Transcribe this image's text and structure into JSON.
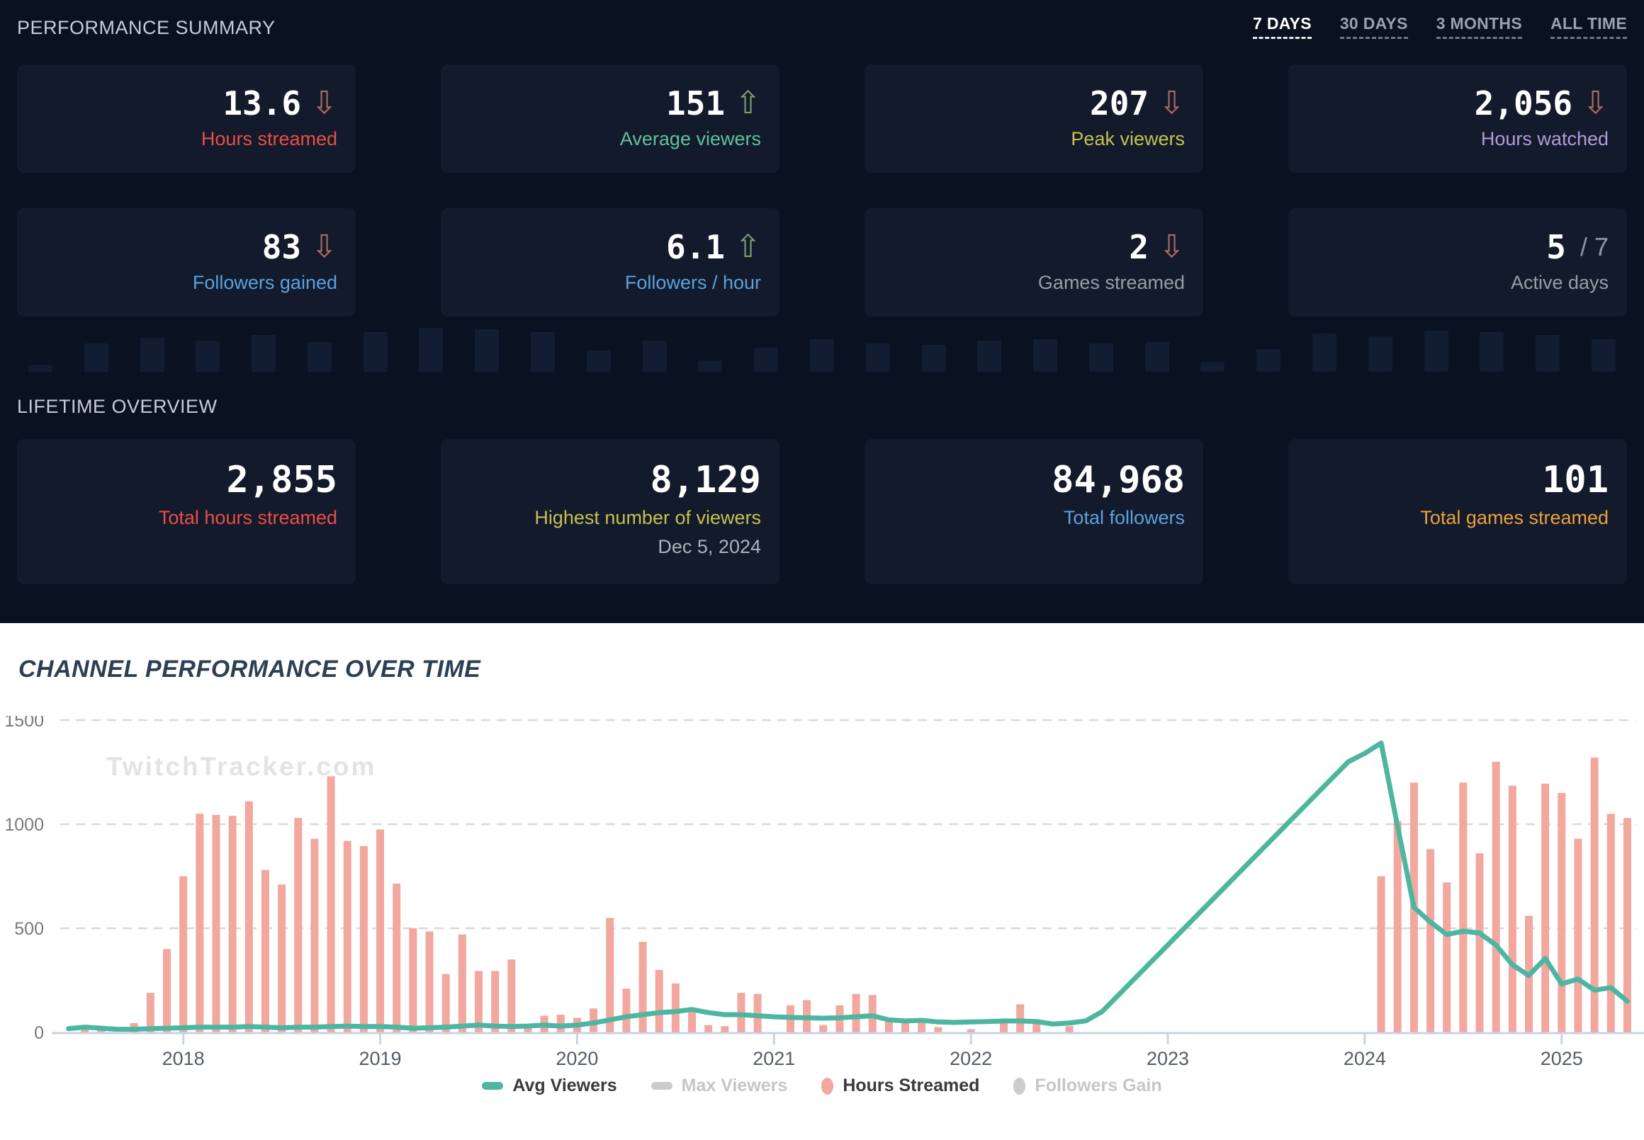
{
  "icons": {
    "trend_up": "⇧",
    "trend_down": "⇩"
  },
  "summary": {
    "title": "PERFORMANCE SUMMARY",
    "tabs": [
      {
        "label": "7 DAYS",
        "active": true
      },
      {
        "label": "30 DAYS",
        "active": false
      },
      {
        "label": "3 MONTHS",
        "active": false
      },
      {
        "label": "ALL TIME",
        "active": false
      }
    ],
    "cards": [
      {
        "value": "13.6",
        "delta": "down",
        "label": "Hours streamed"
      },
      {
        "value": "151",
        "delta": "up",
        "label": "Average viewers"
      },
      {
        "value": "207",
        "delta": "down",
        "label": "Peak viewers"
      },
      {
        "value": "2,056",
        "delta": "down",
        "label": "Hours watched"
      },
      {
        "value": "83",
        "delta": "down",
        "label": "Followers gained"
      },
      {
        "value": "6.1",
        "delta": "up",
        "label": "Followers / hour"
      },
      {
        "value": "2",
        "delta": "down",
        "label": "Games streamed"
      },
      {
        "value": "5",
        "suffix": "/ 7",
        "delta": "none",
        "label": "Active days"
      }
    ],
    "sparkline_heights": [
      10,
      40,
      48,
      44,
      52,
      42,
      56,
      62,
      60,
      56,
      30,
      44,
      16,
      34,
      46,
      40,
      38,
      44,
      46,
      40,
      42,
      14,
      32,
      54,
      50,
      58,
      56,
      52,
      46
    ]
  },
  "lifetime": {
    "title": "LIFETIME OVERVIEW",
    "cards": [
      {
        "value": "2,855",
        "label": "Total hours streamed"
      },
      {
        "value": "8,129",
        "label": "Highest number of viewers",
        "date": "Dec 5, 2024"
      },
      {
        "value": "84,968",
        "label": "Total followers"
      },
      {
        "value": "101",
        "label": "Total games streamed"
      }
    ]
  },
  "chart": {
    "title": "CHANNEL PERFORMANCE OVER TIME",
    "watermark": "TwitchTracker.com",
    "legend": [
      {
        "label": "Avg Viewers",
        "color": "#4db6a0",
        "shape": "dash",
        "enabled": true
      },
      {
        "label": "Max Viewers",
        "color": "#cccccc",
        "shape": "dash",
        "enabled": false
      },
      {
        "label": "Hours Streamed",
        "color": "#f2a79f",
        "shape": "circle",
        "enabled": true
      },
      {
        "label": "Followers Gain",
        "color": "#cccccc",
        "shape": "circle",
        "enabled": false
      }
    ]
  },
  "chart_data": {
    "type": "combo",
    "title": "CHANNEL PERFORMANCE OVER TIME",
    "start_month": "2017-06",
    "ylim": [
      0,
      1500
    ],
    "yticks": [
      0,
      500,
      1000,
      1500
    ],
    "grid": "dashed-horizontal",
    "legend_position": "bottom-center",
    "year_labels": [
      "2018",
      "2019",
      "2020",
      "2021",
      "2022",
      "2023",
      "2024",
      "2025"
    ],
    "series": [
      {
        "name": "Hours Streamed",
        "type": "bar",
        "color": "#f2a79f",
        "values": [
          0,
          15,
          12,
          0,
          45,
          190,
          400,
          750,
          1050,
          1045,
          1040,
          1110,
          780,
          710,
          1030,
          930,
          1230,
          920,
          895,
          975,
          715,
          500,
          485,
          280,
          470,
          295,
          295,
          350,
          25,
          80,
          85,
          70,
          115,
          550,
          210,
          435,
          300,
          235,
          100,
          35,
          30,
          190,
          185,
          0,
          130,
          155,
          35,
          130,
          185,
          180,
          60,
          60,
          60,
          25,
          0,
          15,
          0,
          60,
          135,
          60,
          0,
          30,
          0,
          0,
          0,
          0,
          0,
          0,
          0,
          0,
          0,
          0,
          0,
          0,
          0,
          0,
          0,
          0,
          0,
          0,
          750,
          1015,
          1200,
          880,
          720,
          1200,
          860,
          1300,
          1185,
          560,
          1195,
          1150,
          930,
          1320,
          1050,
          1030
        ]
      },
      {
        "name": "Avg Viewers",
        "type": "line",
        "color": "#4db6a0",
        "values": [
          18,
          25,
          20,
          15,
          15,
          18,
          20,
          22,
          25,
          25,
          25,
          28,
          25,
          22,
          25,
          25,
          28,
          30,
          28,
          28,
          25,
          20,
          22,
          25,
          30,
          35,
          30,
          28,
          30,
          35,
          30,
          35,
          45,
          60,
          75,
          85,
          95,
          100,
          110,
          95,
          85,
          85,
          80,
          75,
          72,
          70,
          68,
          70,
          75,
          80,
          60,
          55,
          58,
          50,
          48,
          50,
          52,
          55,
          55,
          52,
          40,
          45,
          55,
          100,
          180,
          260,
          340,
          420,
          500,
          580,
          660,
          740,
          820,
          900,
          980,
          1060,
          1140,
          1220,
          1300,
          1340,
          1390,
          990,
          600,
          530,
          470,
          486,
          477,
          419,
          325,
          273,
          355,
          233,
          256,
          203,
          215,
          150
        ]
      }
    ]
  }
}
